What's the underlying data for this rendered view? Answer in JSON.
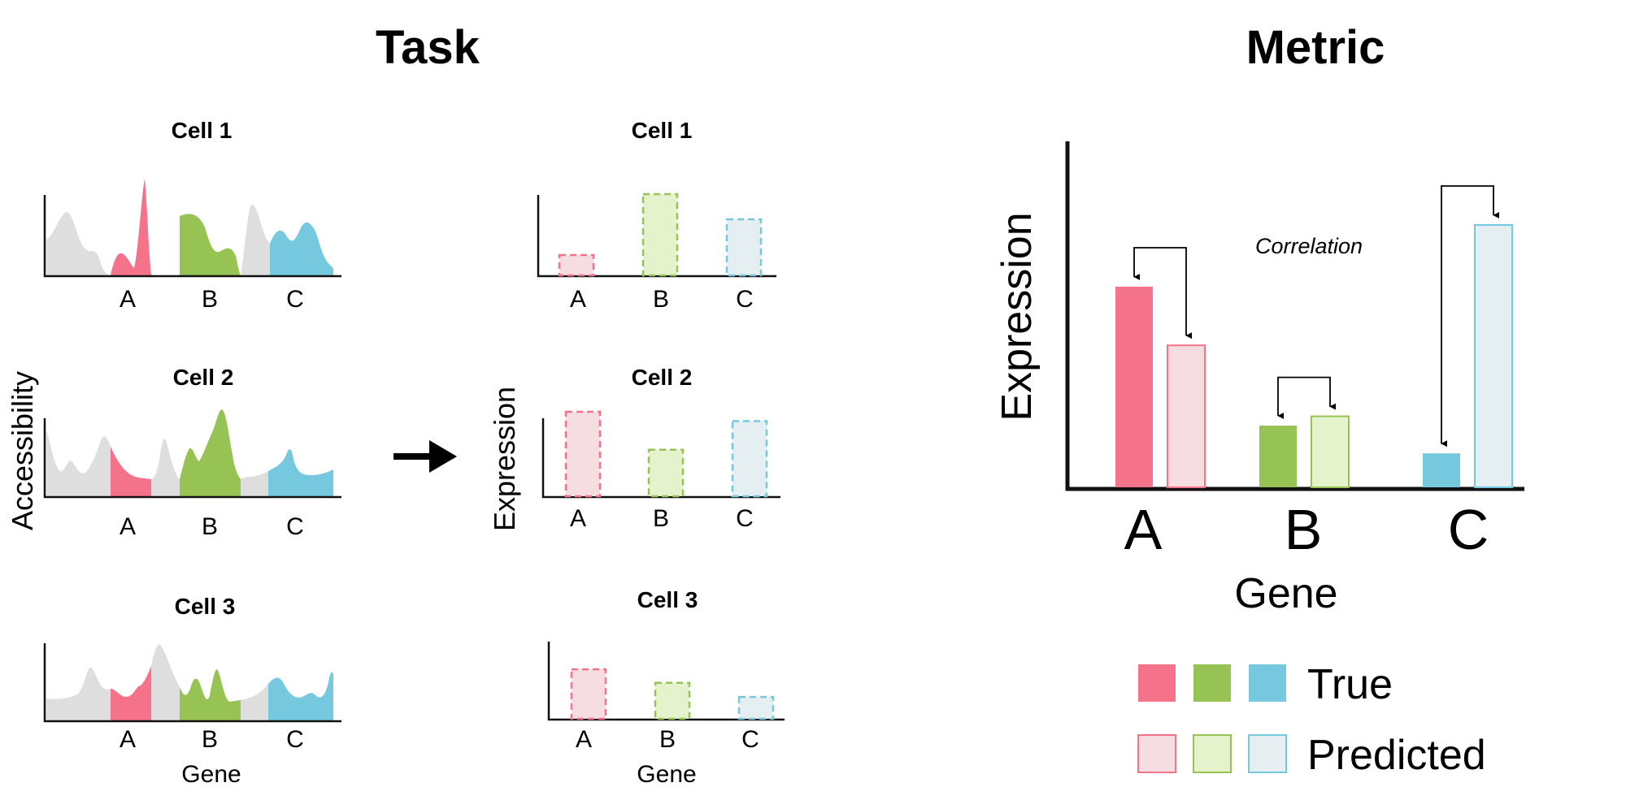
{
  "task": {
    "title": "Task",
    "accessibility_ylabel": "Accessibility",
    "expression_ylabel": "Expression",
    "gene_xlabel": "Gene",
    "cells": [
      {
        "name": "Cell 1",
        "genes": [
          "A",
          "B",
          "C"
        ],
        "predicted_expression": [
          0.25,
          1.0,
          0.69
        ]
      },
      {
        "name": "Cell 2",
        "genes": [
          "A",
          "B",
          "C"
        ],
        "predicted_expression": [
          1.0,
          0.55,
          0.89
        ]
      },
      {
        "name": "Cell 3",
        "genes": [
          "A",
          "B",
          "C"
        ],
        "predicted_expression": [
          0.77,
          0.56,
          0.34
        ]
      }
    ]
  },
  "metric": {
    "title": "Metric",
    "annotation": "Correlation",
    "chart_data": {
      "type": "bar",
      "categories": [
        "A",
        "B",
        "C"
      ],
      "xlabel": "Gene",
      "ylabel": "Expression",
      "series": [
        {
          "name": "True",
          "values": [
            0.65,
            0.2,
            0.11
          ]
        },
        {
          "name": "Predicted",
          "values": [
            0.46,
            0.23,
            0.85
          ]
        }
      ],
      "ylim": [
        0,
        1
      ]
    }
  },
  "colors": {
    "A_true": "#f4738b",
    "A_pred": "#f6dde2",
    "B_true": "#97c354",
    "B_pred": "#e4f3cc",
    "C_true": "#76c8de",
    "C_pred": "#e5eef0",
    "gray": "#dedede",
    "axis": "#111111"
  },
  "legend": {
    "true_label": "True",
    "predicted_label": "Predicted"
  }
}
